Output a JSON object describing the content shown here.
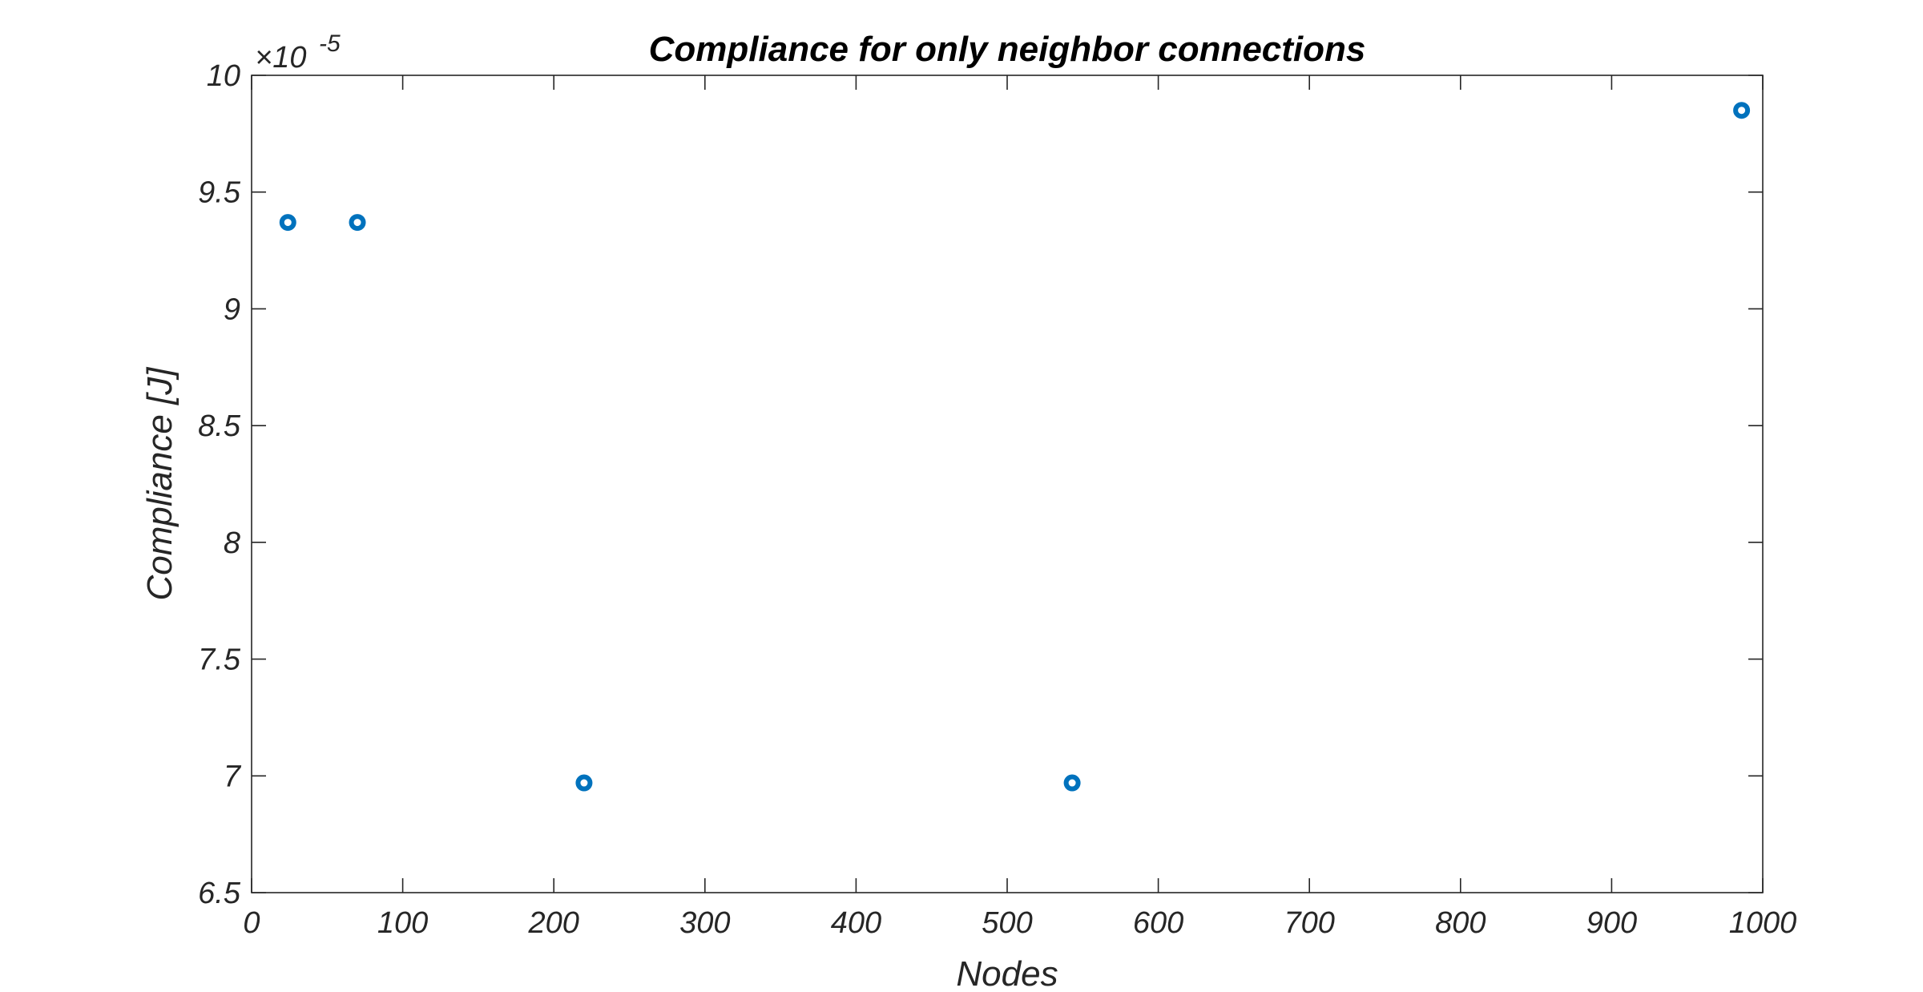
{
  "chart_data": {
    "type": "scatter",
    "title": "Compliance for only neighbor connections",
    "xlabel": "Nodes",
    "ylabel": "Compliance [J]",
    "y_exponent_multiplier": "×10",
    "y_exponent_power": "-5",
    "xlim": [
      0,
      1000
    ],
    "ylim": [
      6.5,
      10
    ],
    "xticks": [
      0,
      100,
      200,
      300,
      400,
      500,
      600,
      700,
      800,
      900,
      1000
    ],
    "xtick_labels": [
      "0",
      "100",
      "200",
      "300",
      "400",
      "500",
      "600",
      "700",
      "800",
      "900",
      "1000"
    ],
    "yticks": [
      6.5,
      7,
      7.5,
      8,
      8.5,
      9,
      9.5,
      10
    ],
    "ytick_labels": [
      "6.5",
      "7",
      "7.5",
      "8",
      "8.5",
      "9",
      "9.5",
      "10"
    ],
    "grid": false,
    "marker": "circle-open",
    "series": [
      {
        "color": "#0072BD",
        "x": [
          24,
          70,
          220,
          543,
          986
        ],
        "y": [
          9.37,
          9.37,
          6.97,
          6.97,
          9.85
        ]
      }
    ]
  }
}
